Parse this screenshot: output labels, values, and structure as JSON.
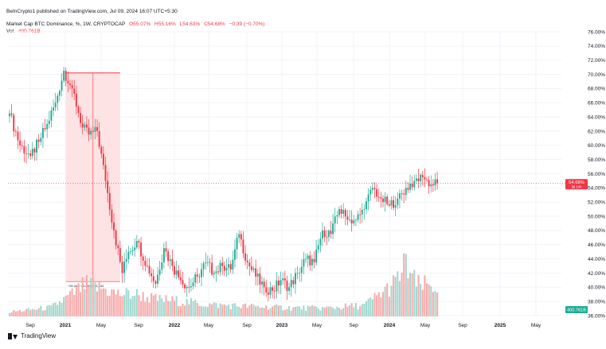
{
  "publisher_line": "BeInCrypto1 published on TradingView.com, Jul 09, 2024 16:07 UTC+5:30",
  "legend": {
    "symbol": "Market Cap BTC Dominance, %, 1W, CRYPTOCAP",
    "open": "O55.07%",
    "high": "H55.16%",
    "low": "L54.63%",
    "close": "C54.68%",
    "change": "−0.39 (−0.70%)",
    "vol_label": "Vol",
    "vol_value": "400.761B"
  },
  "footer_brand": "TradingView",
  "colors": {
    "up": "#22ab94",
    "down": "#f23645",
    "vol_up": "#9fd6cd",
    "vol_down": "#f7a9a9",
    "range_fill": "#fde0e0"
  },
  "chart_data": {
    "type": "candlestick",
    "y_axis": {
      "min": 36,
      "max": 76,
      "step": 2,
      "unit": "%",
      "side": "right"
    },
    "x_ticks": [
      {
        "label": "Sep",
        "bold": false
      },
      {
        "label": "2021",
        "bold": true
      },
      {
        "label": "May",
        "bold": false
      },
      {
        "label": "Sep",
        "bold": false
      },
      {
        "label": "2022",
        "bold": true
      },
      {
        "label": "May",
        "bold": false
      },
      {
        "label": "Sep",
        "bold": false
      },
      {
        "label": "2023",
        "bold": true
      },
      {
        "label": "May",
        "bold": false
      },
      {
        "label": "Sep",
        "bold": false
      },
      {
        "label": "2024",
        "bold": true
      },
      {
        "label": "May",
        "bold": false
      },
      {
        "label": "Sep",
        "bold": false
      },
      {
        "label": "2025",
        "bold": true
      },
      {
        "label": "May",
        "bold": false
      }
    ],
    "close_anchors": [
      {
        "week": 0,
        "close": 64.5
      },
      {
        "week": 5,
        "close": 60.0
      },
      {
        "week": 10,
        "close": 58.5
      },
      {
        "week": 14,
        "close": 60.5
      },
      {
        "week": 18,
        "close": 63.0
      },
      {
        "week": 22,
        "close": 66.0
      },
      {
        "week": 26,
        "close": 70.5
      },
      {
        "week": 30,
        "close": 68.0
      },
      {
        "week": 35,
        "close": 62.5
      },
      {
        "week": 38,
        "close": 61.5
      },
      {
        "week": 42,
        "close": 62.0
      },
      {
        "week": 46,
        "close": 55.0
      },
      {
        "week": 50,
        "close": 48.0
      },
      {
        "week": 54,
        "close": 42.0
      },
      {
        "week": 57,
        "close": 45.0
      },
      {
        "week": 61,
        "close": 46.5
      },
      {
        "week": 66,
        "close": 43.0
      },
      {
        "week": 70,
        "close": 40.5
      },
      {
        "week": 74,
        "close": 45.5
      },
      {
        "week": 78,
        "close": 43.0
      },
      {
        "week": 82,
        "close": 41.0
      },
      {
        "week": 86,
        "close": 40.0
      },
      {
        "week": 90,
        "close": 41.5
      },
      {
        "week": 94,
        "close": 43.5
      },
      {
        "week": 98,
        "close": 42.0
      },
      {
        "week": 102,
        "close": 43.0
      },
      {
        "week": 106,
        "close": 42.5
      },
      {
        "week": 110,
        "close": 47.5
      },
      {
        "week": 114,
        "close": 43.5
      },
      {
        "week": 118,
        "close": 41.5
      },
      {
        "week": 122,
        "close": 40.0
      },
      {
        "week": 126,
        "close": 39.5
      },
      {
        "week": 130,
        "close": 41.0
      },
      {
        "week": 134,
        "close": 40.0
      },
      {
        "week": 138,
        "close": 42.0
      },
      {
        "week": 142,
        "close": 44.0
      },
      {
        "week": 146,
        "close": 43.5
      },
      {
        "week": 150,
        "close": 48.0
      },
      {
        "week": 154,
        "close": 47.5
      },
      {
        "week": 158,
        "close": 51.0
      },
      {
        "week": 162,
        "close": 49.5
      },
      {
        "week": 166,
        "close": 49.5
      },
      {
        "week": 170,
        "close": 51.0
      },
      {
        "week": 174,
        "close": 54.0
      },
      {
        "week": 178,
        "close": 52.5
      },
      {
        "week": 182,
        "close": 51.5
      },
      {
        "week": 186,
        "close": 52.5
      },
      {
        "week": 190,
        "close": 54.0
      },
      {
        "week": 194,
        "close": 55.0
      },
      {
        "week": 198,
        "close": 55.5
      },
      {
        "week": 202,
        "close": 54.5
      },
      {
        "week": 205,
        "close": 54.68
      }
    ],
    "volume_anchors_b": [
      {
        "week": 0,
        "vol": 60
      },
      {
        "week": 20,
        "vol": 120
      },
      {
        "week": 32,
        "vol": 330
      },
      {
        "week": 36,
        "vol": 420
      },
      {
        "week": 44,
        "vol": 380
      },
      {
        "week": 52,
        "vol": 300
      },
      {
        "week": 60,
        "vol": 300
      },
      {
        "week": 70,
        "vol": 230
      },
      {
        "week": 80,
        "vol": 210
      },
      {
        "week": 95,
        "vol": 160
      },
      {
        "week": 110,
        "vol": 140
      },
      {
        "week": 130,
        "vol": 120
      },
      {
        "week": 150,
        "vol": 110
      },
      {
        "week": 170,
        "vol": 150
      },
      {
        "week": 185,
        "vol": 450
      },
      {
        "week": 190,
        "vol": 700
      },
      {
        "week": 195,
        "vol": 420
      },
      {
        "week": 205,
        "vol": 400.761
      }
    ],
    "volume_max_b": 1600,
    "last_price_label": "54.68%",
    "last_price_countdown": "3d 14h",
    "last_volume_label": "400.761B",
    "measure_tool": {
      "start_week": 27,
      "end_week": 53,
      "top": 70.2,
      "bottom": 40.8,
      "label": "−29.44 (−41.88%) −2,944"
    }
  }
}
